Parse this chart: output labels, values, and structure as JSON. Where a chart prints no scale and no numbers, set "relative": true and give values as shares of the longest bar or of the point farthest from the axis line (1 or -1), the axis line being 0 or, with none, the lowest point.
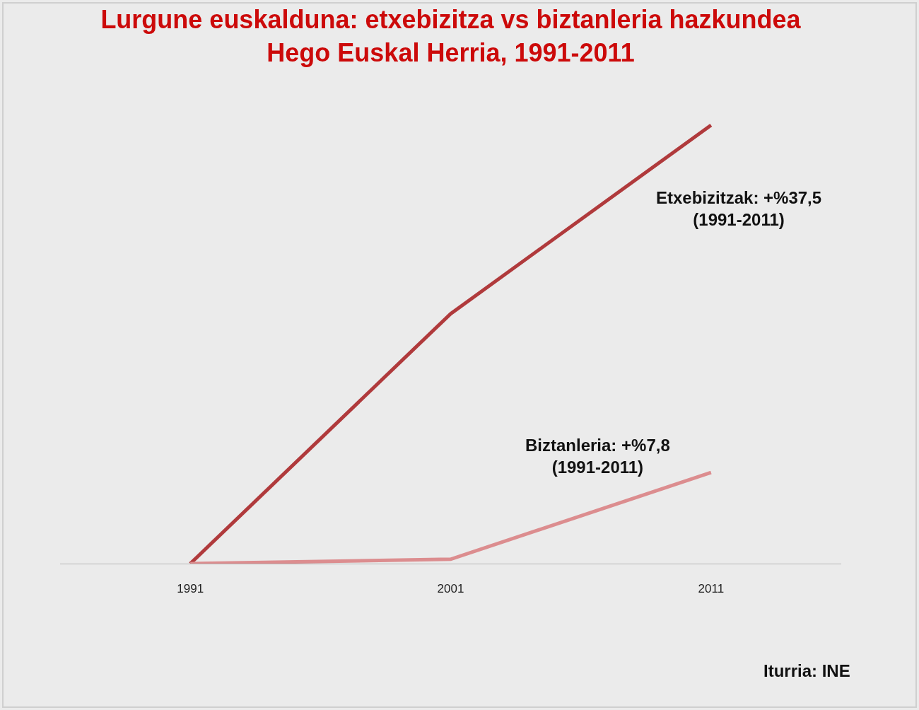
{
  "chart_data": {
    "type": "line",
    "title": "Lurgune euskalduna: etxebizitza vs biztanleria hazkundea",
    "subtitle": "Hego Euskal Herria, 1991-2011",
    "categories": [
      "1991",
      "2001",
      "2011"
    ],
    "relative": true,
    "series": [
      {
        "color": "#b03a3c",
        "values": [
          0,
          0.57,
          1
        ]
      },
      {
        "color": "#dc8d8f",
        "values": [
          0,
          0.01,
          0.208
        ]
      }
    ],
    "annotations": [
      "Etxebizitzak: +%37,5\n(1991-2011)",
      "Biztanleria: +%7,8\n(1991-2011)",
      "Iturria: INE"
    ],
    "grid": false,
    "marker": "none",
    "line_style": "solid"
  }
}
